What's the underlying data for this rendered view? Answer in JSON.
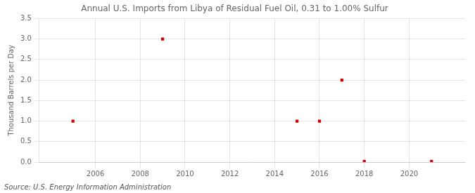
{
  "chart_data": {
    "type": "scatter",
    "title": "Annual U.S. Imports from Libya of Residual Fuel Oil, 0.31 to 1.00% Sulfur",
    "ylabel": "Thousand Barrels per Day",
    "annotations": [
      "Source: U.S. Energy Information Administration"
    ],
    "x": [
      2005,
      2009,
      2015,
      2016,
      2017,
      2018,
      2021
    ],
    "values": [
      1.0,
      3.0,
      1.0,
      1.0,
      2.0,
      0.02,
      0.02
    ],
    "color": "#cc0000",
    "marker": "square",
    "xlim": [
      2003.5,
      2022.5
    ],
    "xticks": [
      2006,
      2008,
      2010,
      2012,
      2014,
      2016,
      2018,
      2020
    ],
    "ylim": [
      0.0,
      3.5
    ],
    "yticks": [
      {
        "value": 0.0,
        "label": "0.0"
      },
      0.5,
      {
        "value": 1.0,
        "label": "1.0"
      },
      1.5,
      {
        "value": 2.0,
        "label": "2.0"
      },
      2.5,
      {
        "value": 3.0,
        "label": "3.0"
      },
      3.5
    ],
    "grid": true
  }
}
